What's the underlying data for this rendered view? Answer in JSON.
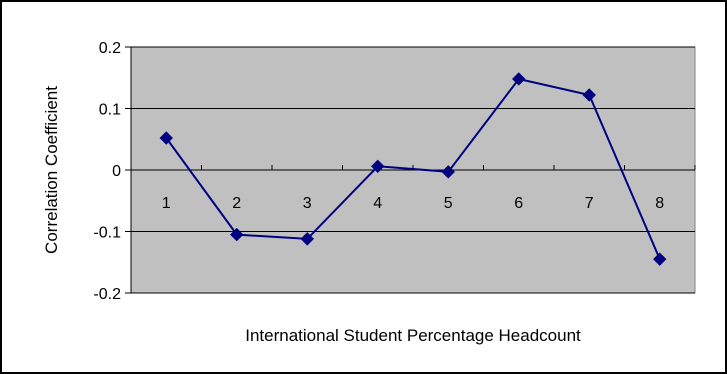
{
  "chart_data": {
    "type": "line",
    "title": "",
    "xlabel": "International Student Percentage Headcount",
    "ylabel": "Correlation Coefficient",
    "x": [
      "1",
      "2",
      "3",
      "4",
      "5",
      "6",
      "7",
      "8"
    ],
    "ylim": [
      -0.2,
      0.2
    ],
    "yticks": [
      -0.2,
      -0.1,
      0,
      0.1,
      0.2
    ],
    "ytick_labels": [
      "-0.2",
      "-0.1",
      "0",
      "0.1",
      "0.2"
    ],
    "grid": true,
    "legend": "none",
    "series": [
      {
        "values": [
          0.052,
          -0.105,
          -0.112,
          0.006,
          -0.003,
          0.148,
          0.122,
          -0.145
        ]
      }
    ],
    "colors": {
      "plot_background": "#c0c0c0",
      "line": "#000080",
      "marker": "#000080",
      "gridline": "#000000",
      "frame": "#000000"
    }
  }
}
